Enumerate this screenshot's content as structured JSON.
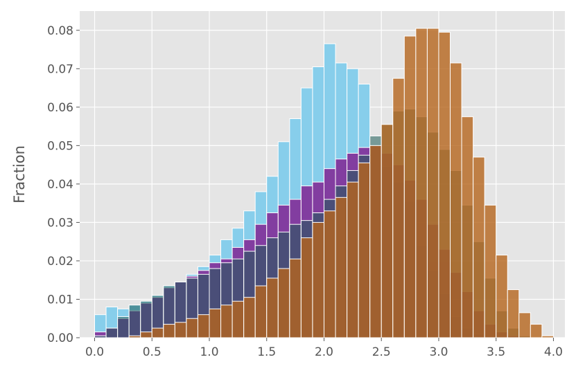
{
  "chart_data": {
    "type": "bar",
    "subtype": "overlapping-histogram",
    "title": "",
    "xlabel": "",
    "ylabel": "Fraction",
    "xlim": [
      -0.13,
      4.1
    ],
    "ylim": [
      0,
      0.085
    ],
    "x_ticks": [
      "0.0",
      "0.5",
      "1.0",
      "1.5",
      "2.0",
      "2.5",
      "3.0",
      "3.5",
      "4.0"
    ],
    "y_ticks": [
      "0.00",
      "0.01",
      "0.02",
      "0.03",
      "0.04",
      "0.05",
      "0.06",
      "0.07",
      "0.08"
    ],
    "grid": true,
    "background_color": "#e5e5e5",
    "bin_start": 0.0,
    "bin_width": 0.1,
    "series": [
      {
        "color": "#87ceeb",
        "opacity": 1.0,
        "values": [
          0.006,
          0.008,
          0.0075,
          0.0085,
          0.0095,
          0.011,
          0.0135,
          0.0145,
          0.0165,
          0.0185,
          0.0215,
          0.0255,
          0.0285,
          0.033,
          0.038,
          0.042,
          0.051,
          0.057,
          0.065,
          0.0705,
          0.0765,
          0.0715,
          0.07,
          0.066,
          0.049,
          0.0445,
          0.0405,
          0.0355,
          0.024,
          0.0175,
          0.0115,
          0.0055,
          0.0025,
          0.001,
          0.0003,
          0.0001
        ]
      },
      {
        "color": "#800080",
        "opacity": 0.7,
        "values": [
          0.0015,
          0.0025,
          0.005,
          0.007,
          0.009,
          0.0105,
          0.013,
          0.0145,
          0.016,
          0.0175,
          0.0195,
          0.0205,
          0.0235,
          0.0255,
          0.0295,
          0.0325,
          0.0345,
          0.036,
          0.0395,
          0.0405,
          0.044,
          0.0465,
          0.048,
          0.0495,
          0.05,
          0.048,
          0.045,
          0.041,
          0.036,
          0.0295,
          0.023,
          0.017,
          0.012,
          0.007,
          0.0035,
          0.0015,
          0.0005,
          0.0001
        ]
      },
      {
        "color": "#1d5c57",
        "opacity": 0.55,
        "values": [
          0.0005,
          0.0025,
          0.0055,
          0.0085,
          0.0095,
          0.011,
          0.0135,
          0.0145,
          0.0155,
          0.0165,
          0.018,
          0.0195,
          0.0205,
          0.0225,
          0.024,
          0.026,
          0.0275,
          0.0295,
          0.0305,
          0.0325,
          0.036,
          0.0395,
          0.0435,
          0.0475,
          0.0525,
          0.0555,
          0.059,
          0.0595,
          0.0575,
          0.0535,
          0.049,
          0.0435,
          0.0345,
          0.025,
          0.0155,
          0.007,
          0.0025,
          0.0005,
          0.0001
        ]
      },
      {
        "color": "#f5a042",
        "opacity": 0.75,
        "values": [
          0.0,
          0.0,
          0.0,
          0.0,
          0.0,
          0.0,
          0.0,
          0.0,
          0.0,
          0.0,
          0.0,
          0.0,
          0.0,
          0.0,
          0.0,
          0.0,
          0.0,
          0.0,
          0.0,
          0.0,
          0.0,
          0.0,
          0.0,
          0.0,
          0.0,
          0.0,
          0.0,
          0.0,
          0.0,
          0.0,
          0.0,
          0.0,
          0.0,
          0.0,
          0.0,
          0.0,
          0.0
        ]
      },
      {
        "color": "#b5651d",
        "opacity": 0.8,
        "values": [
          0.0,
          0.0,
          0.0,
          0.0005,
          0.0015,
          0.0025,
          0.0035,
          0.004,
          0.005,
          0.006,
          0.0075,
          0.0085,
          0.0095,
          0.0105,
          0.0135,
          0.0155,
          0.018,
          0.0205,
          0.026,
          0.03,
          0.033,
          0.0365,
          0.0405,
          0.0455,
          0.05,
          0.0555,
          0.0675,
          0.0785,
          0.0805,
          0.0805,
          0.0795,
          0.0715,
          0.0575,
          0.047,
          0.0345,
          0.0215,
          0.0125,
          0.0065,
          0.0035,
          0.0005
        ]
      }
    ]
  }
}
